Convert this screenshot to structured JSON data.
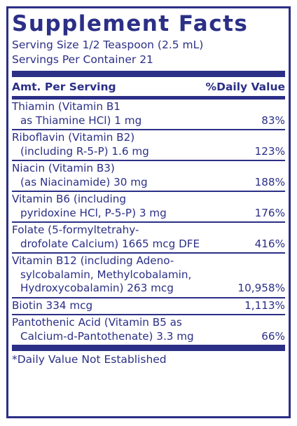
{
  "title": "Supplement Facts",
  "serving_size": "Serving Size 1/2 Teaspoon (2.5 mL)",
  "servings_per_container": "Servings Per Container 21",
  "header": {
    "amount": "Amt. Per Serving",
    "daily_value": "%Daily Value"
  },
  "nutrients": [
    {
      "line1": "Thiamin (Vitamin B1",
      "line2_text": "as Thiamine HCl)  1 mg",
      "dv": "83%"
    },
    {
      "line1": "Riboflavin (Vitamin B2)",
      "line2_text": "(including R-5-P)  1.6 mg",
      "dv": "123%"
    },
    {
      "line1": "Niacin (Vitamin B3)",
      "line2_text": "(as Niacinamide)  30 mg",
      "dv": "188%"
    },
    {
      "line1": "Vitamin B6 (including",
      "line2_text": "pyridoxine HCl, P-5-P)  3 mg",
      "dv": "176%"
    },
    {
      "line1": "Folate (5-formyltetrahy-",
      "line2_text": "drofolate Calcium) 1665 mcg DFE",
      "dv": "416%"
    },
    {
      "line1": "Vitamin B12 (including Adeno-",
      "line2": "sylcobalamin, Methylcobalamin,",
      "line3_text": "Hydroxycobalamin)  263 mcg",
      "dv": "10,958%"
    },
    {
      "line1_text": "Biotin   334 mcg",
      "dv": "1,113%"
    },
    {
      "line1": "Pantothenic Acid (Vitamin B5 as",
      "line2_text": "Calcium-d-Pantothenate)  3.3 mg",
      "dv": "66%"
    }
  ],
  "footnote": "*Daily Value Not Established"
}
